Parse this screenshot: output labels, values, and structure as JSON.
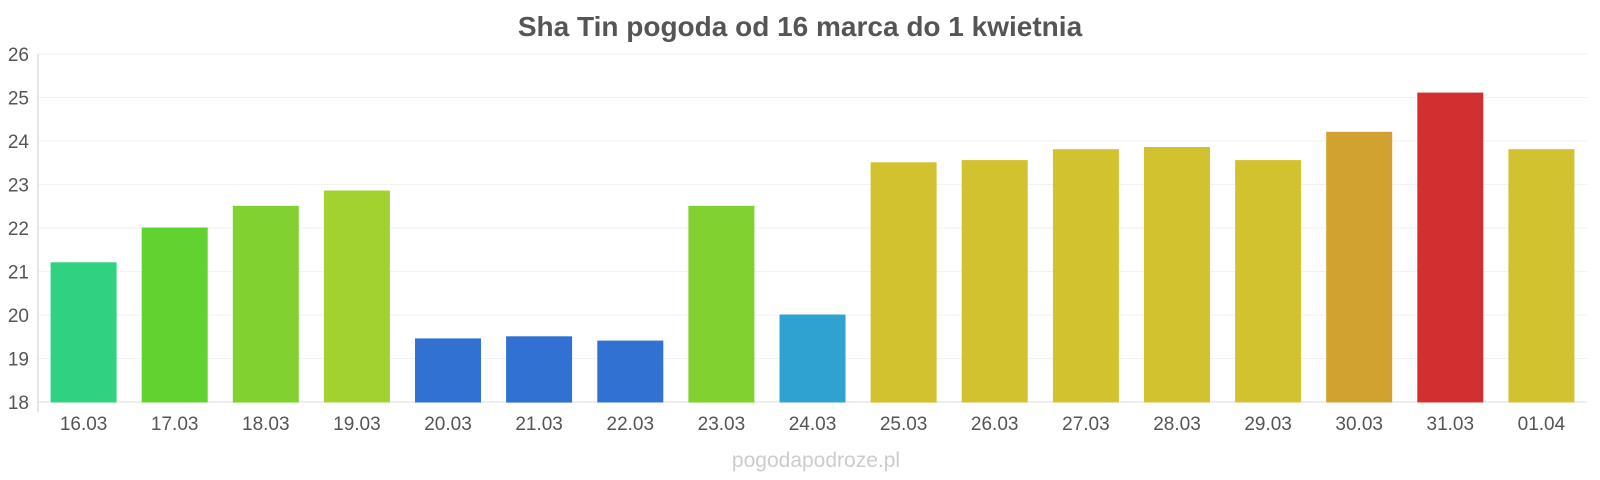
{
  "chart_data": {
    "type": "bar",
    "title": "Sha Tin pogoda od 16 marca do 1 kwietnia",
    "xlabel": "",
    "ylabel": "",
    "categories": [
      "16.03",
      "17.03",
      "18.03",
      "19.03",
      "20.03",
      "21.03",
      "22.03",
      "23.03",
      "24.03",
      "25.03",
      "26.03",
      "27.03",
      "28.03",
      "29.03",
      "30.03",
      "31.03",
      "01.04"
    ],
    "values": [
      21.2,
      22.0,
      22.5,
      22.85,
      19.45,
      19.5,
      19.4,
      22.5,
      20.0,
      23.5,
      23.55,
      23.8,
      23.85,
      23.55,
      24.2,
      25.1,
      23.8
    ],
    "colors": [
      "#33dd88",
      "#66dd33",
      "#88dd33",
      "#aadd33",
      "#3377dd",
      "#3377dd",
      "#3377dd",
      "#88dd33",
      "#33aadd",
      "#ddcc33",
      "#ddcc33",
      "#ddcc33",
      "#ddcc33",
      "#ddcc33",
      "#ddaa33",
      "#dd3333",
      "#ddcc33"
    ],
    "ylim": [
      18,
      26
    ],
    "yticks": [
      "18",
      "19",
      "20",
      "21",
      "22",
      "23",
      "24",
      "25",
      "26"
    ],
    "grid": true,
    "legend": "none"
  },
  "footer": {
    "watermark": "pogodapodroze.pl"
  }
}
